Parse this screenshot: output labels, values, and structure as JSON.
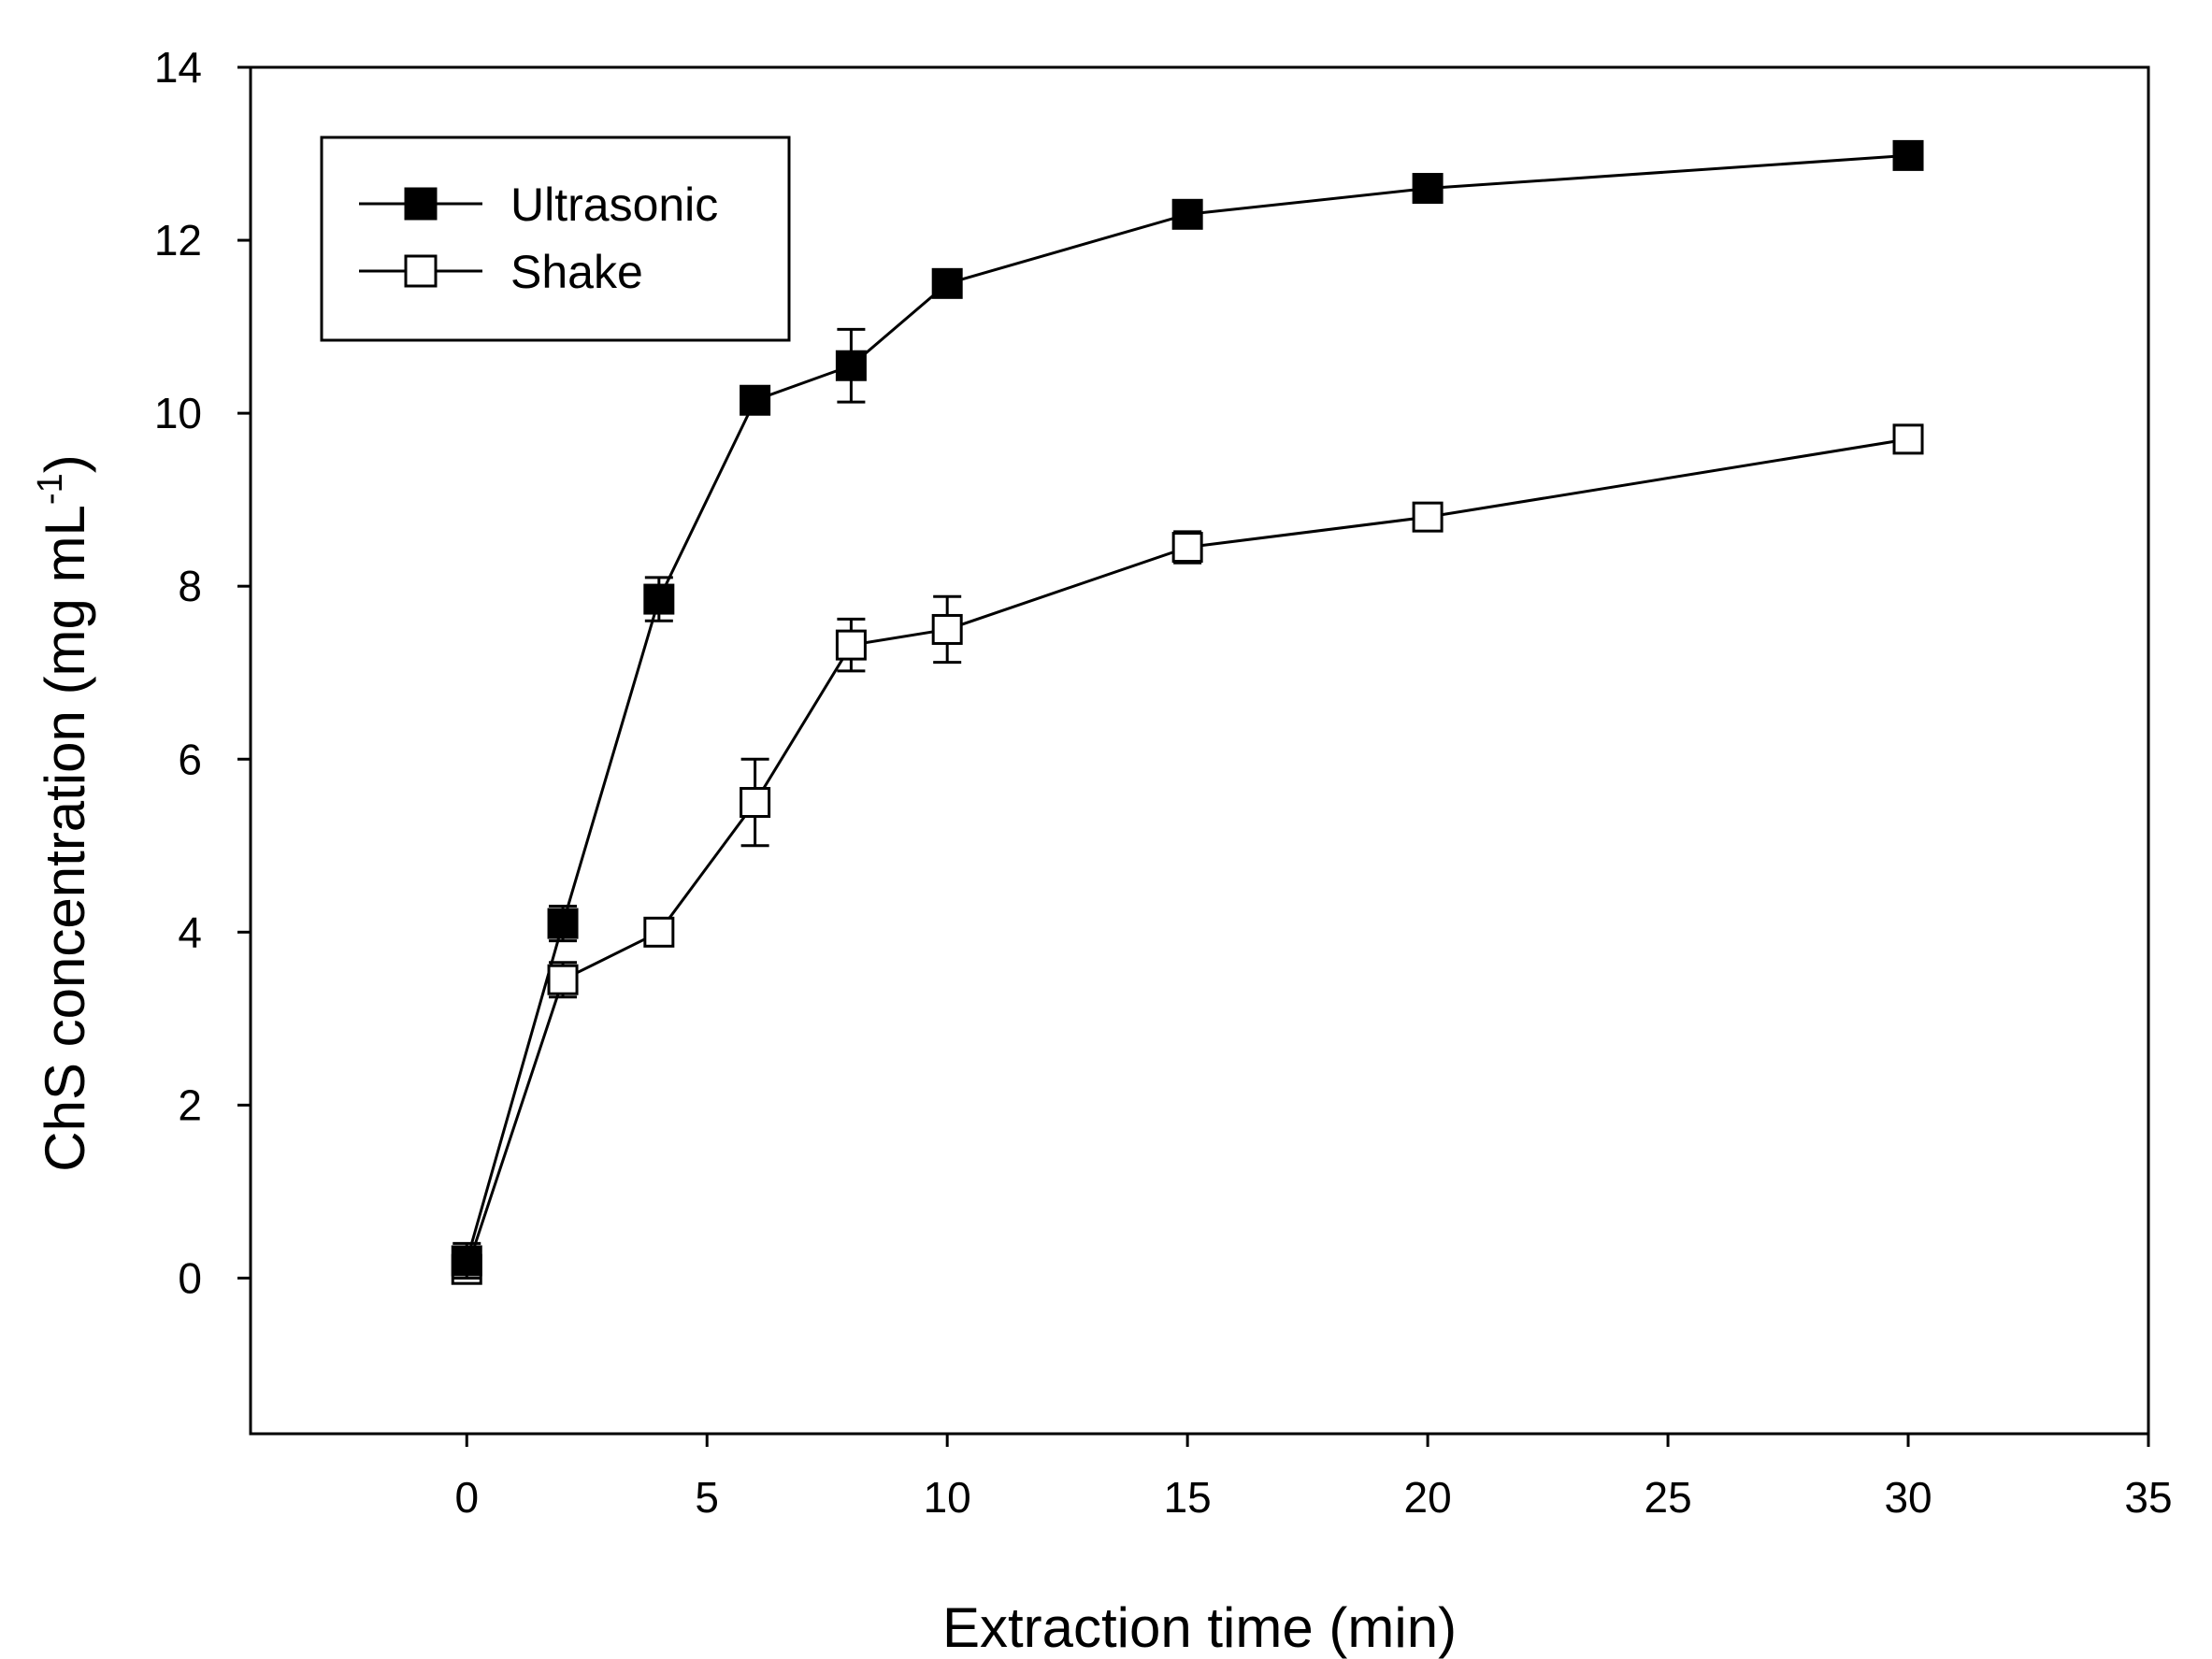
{
  "chart_data": {
    "type": "line",
    "title": "",
    "xlabel": "Extraction time (min)",
    "ylabel": "ChS concentration (mg mL",
    "ylabel_sup": "-1",
    "ylabel_close": ")",
    "xlim": [
      -4.5,
      35
    ],
    "ylim": [
      -1.8,
      14
    ],
    "xticks": [
      0,
      5,
      10,
      15,
      20,
      25,
      30,
      35
    ],
    "yticks": [
      0,
      2,
      4,
      6,
      8,
      10,
      12,
      14
    ],
    "grid": false,
    "legend_position": "top-left",
    "series": [
      {
        "name": "Ultrasonic",
        "marker": "filled-square",
        "points": [
          {
            "x": 0,
            "y": 0.2,
            "err": 0.2
          },
          {
            "x": 2,
            "y": 4.1,
            "err": 0.2
          },
          {
            "x": 4,
            "y": 7.85,
            "err": 0.25
          },
          {
            "x": 6,
            "y": 10.15,
            "err": 0.1
          },
          {
            "x": 8,
            "y": 10.55,
            "err": 0.42
          },
          {
            "x": 10,
            "y": 11.5,
            "err": 0.15
          },
          {
            "x": 15,
            "y": 12.3,
            "err": 0.1
          },
          {
            "x": 20,
            "y": 12.6,
            "err": 0.15
          },
          {
            "x": 30,
            "y": 12.98,
            "err": 0.08
          }
        ]
      },
      {
        "name": "Shake",
        "marker": "open-square",
        "points": [
          {
            "x": 0,
            "y": 0.1,
            "err": 0.1
          },
          {
            "x": 2,
            "y": 3.45,
            "err": 0.2
          },
          {
            "x": 4,
            "y": 4.0,
            "err": 0.1
          },
          {
            "x": 6,
            "y": 5.5,
            "err": 0.5
          },
          {
            "x": 8,
            "y": 7.32,
            "err": 0.3
          },
          {
            "x": 10,
            "y": 7.5,
            "err": 0.38
          },
          {
            "x": 15,
            "y": 8.45,
            "err": 0.18
          },
          {
            "x": 20,
            "y": 8.8,
            "err": 0.1
          },
          {
            "x": 30,
            "y": 9.7,
            "err": 0.08
          }
        ]
      }
    ]
  }
}
